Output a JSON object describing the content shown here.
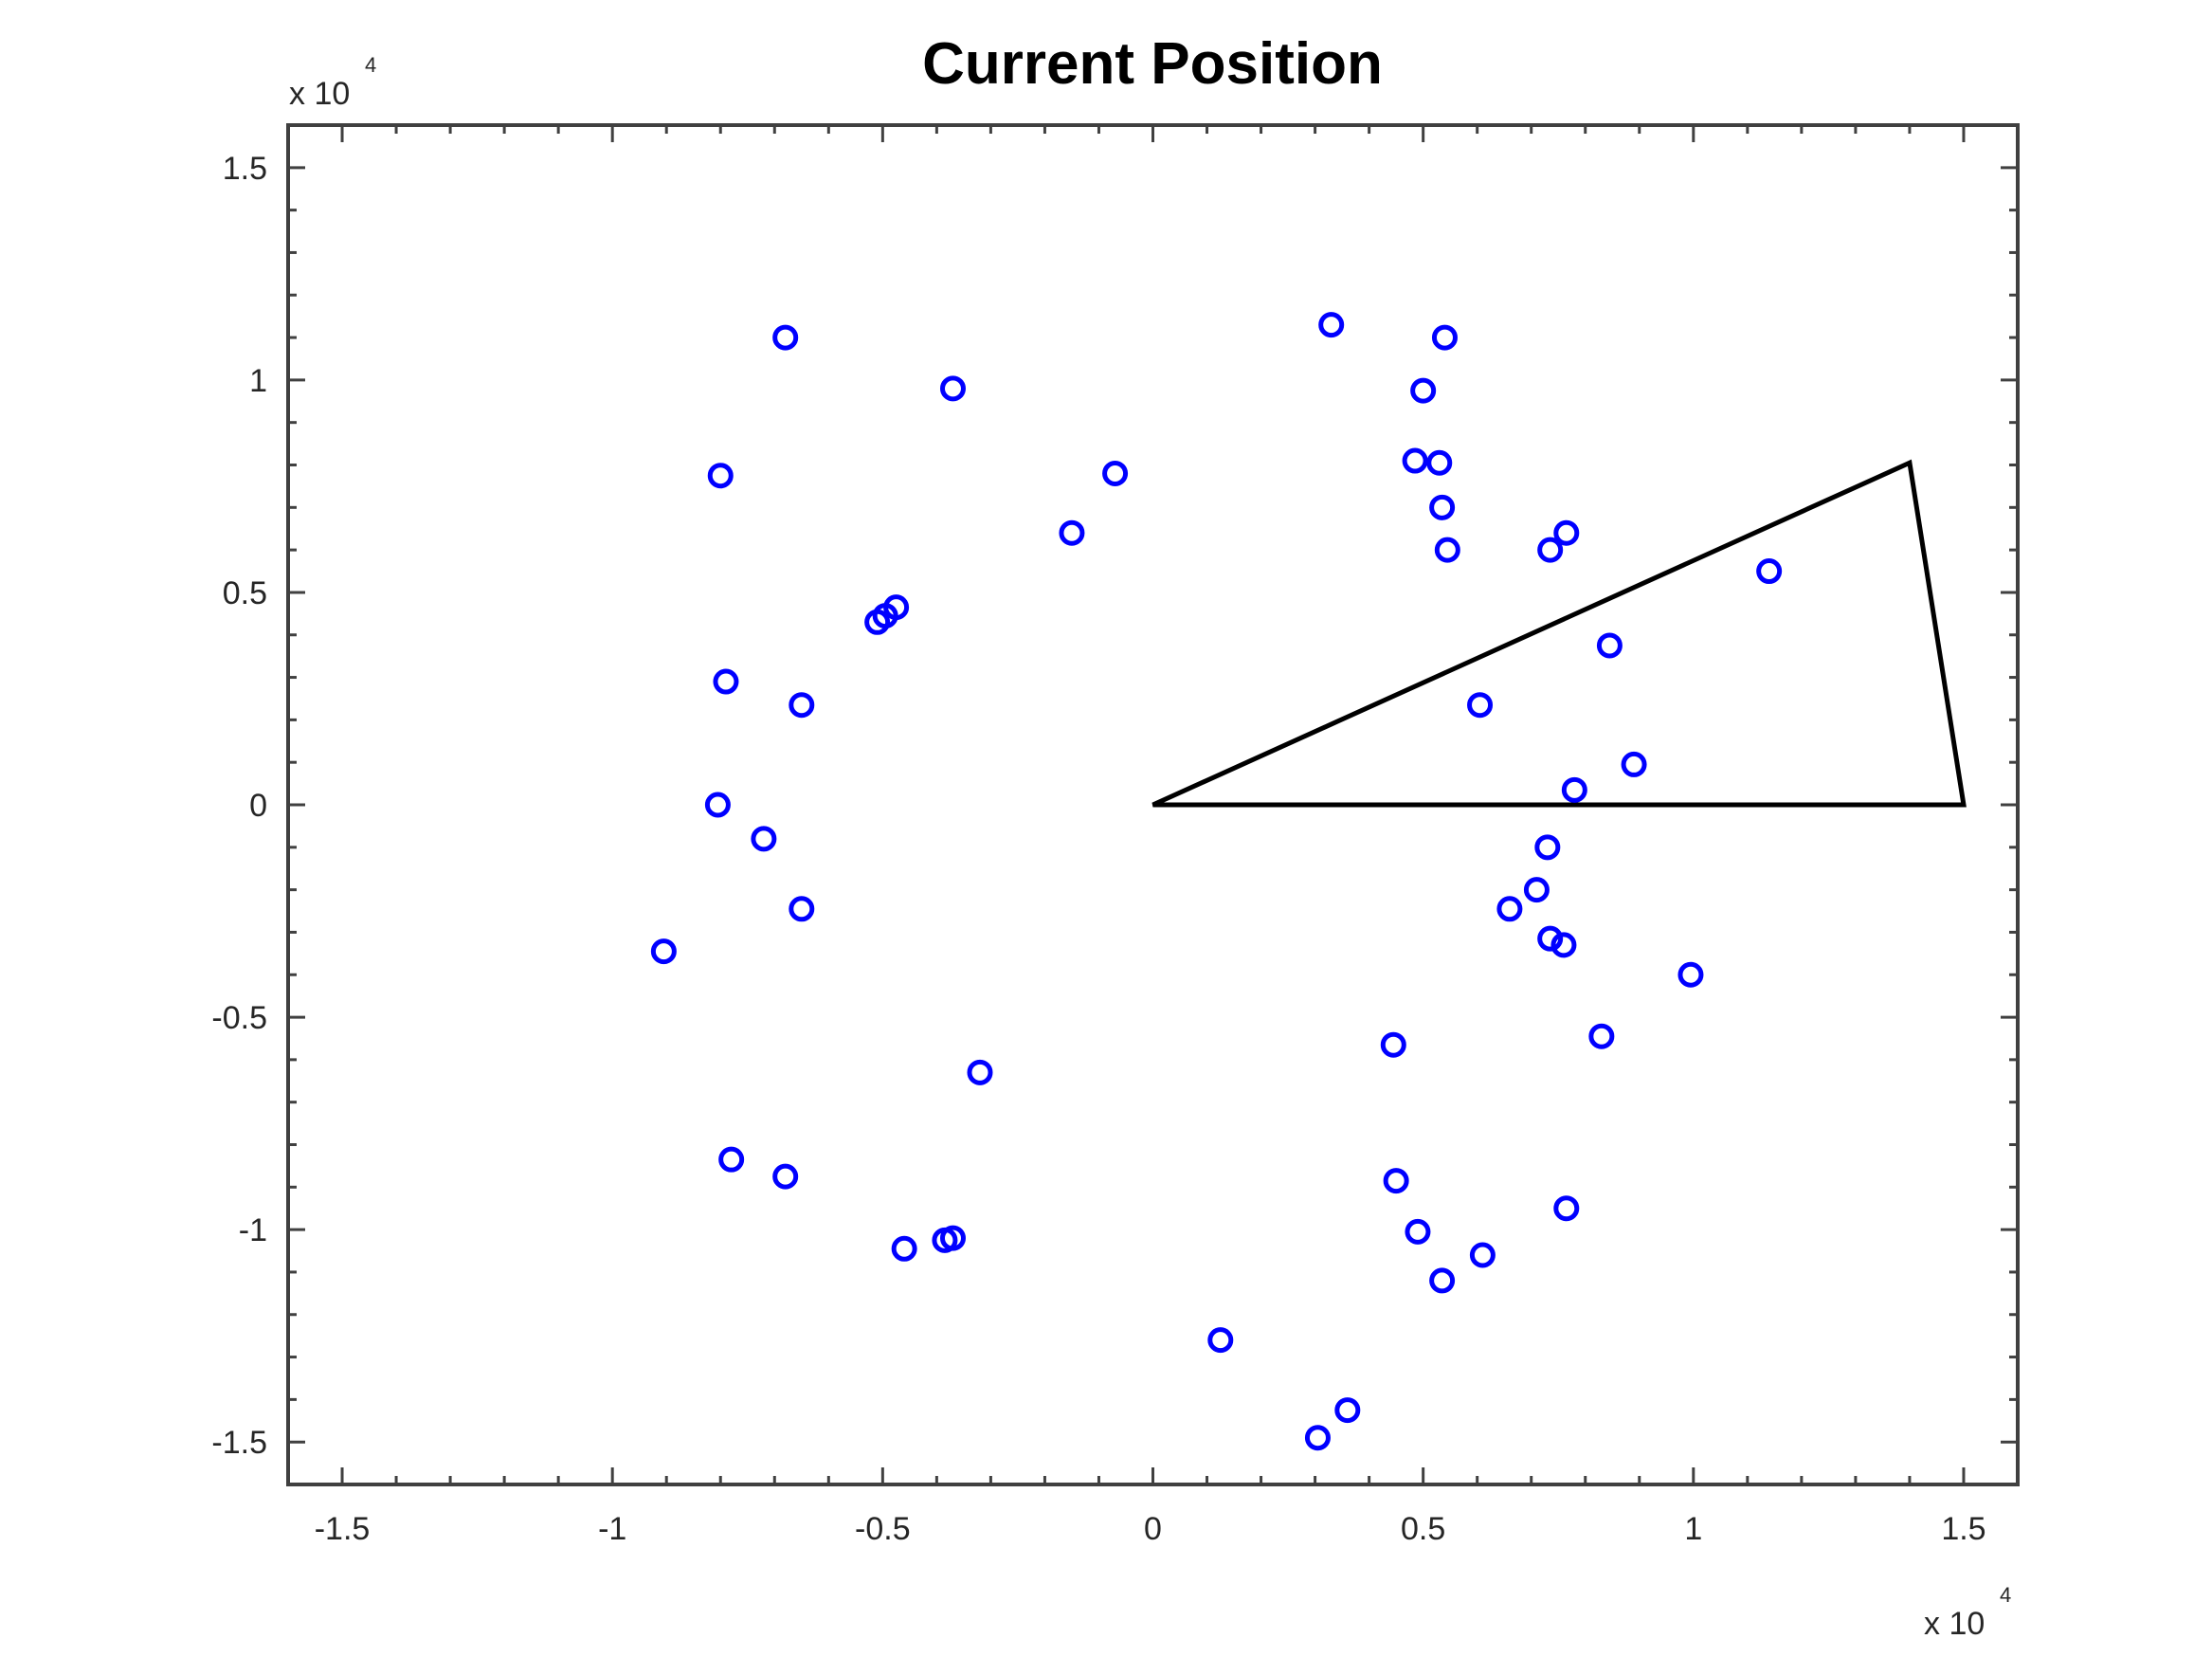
{
  "chart_data": {
    "type": "scatter",
    "title": "Current Position",
    "xlabel": "",
    "ylabel": "",
    "xlim": [
      -16000,
      16000
    ],
    "ylim": [
      -16000,
      16000
    ],
    "x_ticks": [
      -15000,
      -10000,
      -5000,
      0,
      5000,
      10000,
      15000
    ],
    "y_ticks": [
      -15000,
      -10000,
      -5000,
      0,
      5000,
      10000,
      15000
    ],
    "x_tick_labels": [
      "-1.5",
      "-1",
      "-0.5",
      "0",
      "0.5",
      "1",
      "1.5"
    ],
    "y_tick_labels": [
      "-1.5",
      "-1",
      "-0.5",
      "0",
      "0.5",
      "1",
      "1.5"
    ],
    "x_exponent": {
      "base": "x 10",
      "power": "4"
    },
    "y_exponent": {
      "base": "x 10",
      "power": "4"
    },
    "grid": false,
    "box": true,
    "colors": {
      "marker": "#0000ff",
      "triangle": "#000000",
      "axes": "#404040"
    },
    "series": [
      {
        "marker": "circle",
        "points": [
          [
            -6800,
            11000
          ],
          [
            -3700,
            9800
          ],
          [
            -8000,
            7750
          ],
          [
            -700,
            7800
          ],
          [
            -1500,
            6400
          ],
          [
            -4750,
            4650
          ],
          [
            -4950,
            4450
          ],
          [
            -5100,
            4300
          ],
          [
            -7900,
            2900
          ],
          [
            -6500,
            2350
          ],
          [
            -8050,
            0
          ],
          [
            -7200,
            -800
          ],
          [
            -6500,
            -2450
          ],
          [
            -9050,
            -3450
          ],
          [
            -3200,
            -6300
          ],
          [
            -7800,
            -8350
          ],
          [
            -6800,
            -8750
          ],
          [
            -4600,
            -10450
          ],
          [
            -3850,
            -10250
          ],
          [
            -3700,
            -10200
          ],
          [
            1250,
            -12600
          ],
          [
            3050,
            -14900
          ],
          [
            3600,
            -14250
          ],
          [
            3300,
            11300
          ],
          [
            5400,
            11000
          ],
          [
            5000,
            9750
          ],
          [
            4850,
            8100
          ],
          [
            5300,
            8050
          ],
          [
            5350,
            7000
          ],
          [
            5450,
            6000
          ],
          [
            7650,
            6400
          ],
          [
            7350,
            6000
          ],
          [
            11400,
            5500
          ],
          [
            8450,
            3750
          ],
          [
            6050,
            2350
          ],
          [
            8900,
            950
          ],
          [
            7800,
            350
          ],
          [
            7300,
            -1000
          ],
          [
            7100,
            -2000
          ],
          [
            6600,
            -2450
          ],
          [
            7350,
            -3150
          ],
          [
            7600,
            -3300
          ],
          [
            9950,
            -4000
          ],
          [
            8300,
            -5450
          ],
          [
            4450,
            -5650
          ],
          [
            4500,
            -8850
          ],
          [
            4900,
            -10050
          ],
          [
            5350,
            -11200
          ],
          [
            6100,
            -10600
          ],
          [
            7650,
            -9500
          ]
        ]
      }
    ],
    "triangle": [
      [
        0,
        0
      ],
      [
        14000,
        8050
      ],
      [
        15000,
        0
      ]
    ]
  }
}
